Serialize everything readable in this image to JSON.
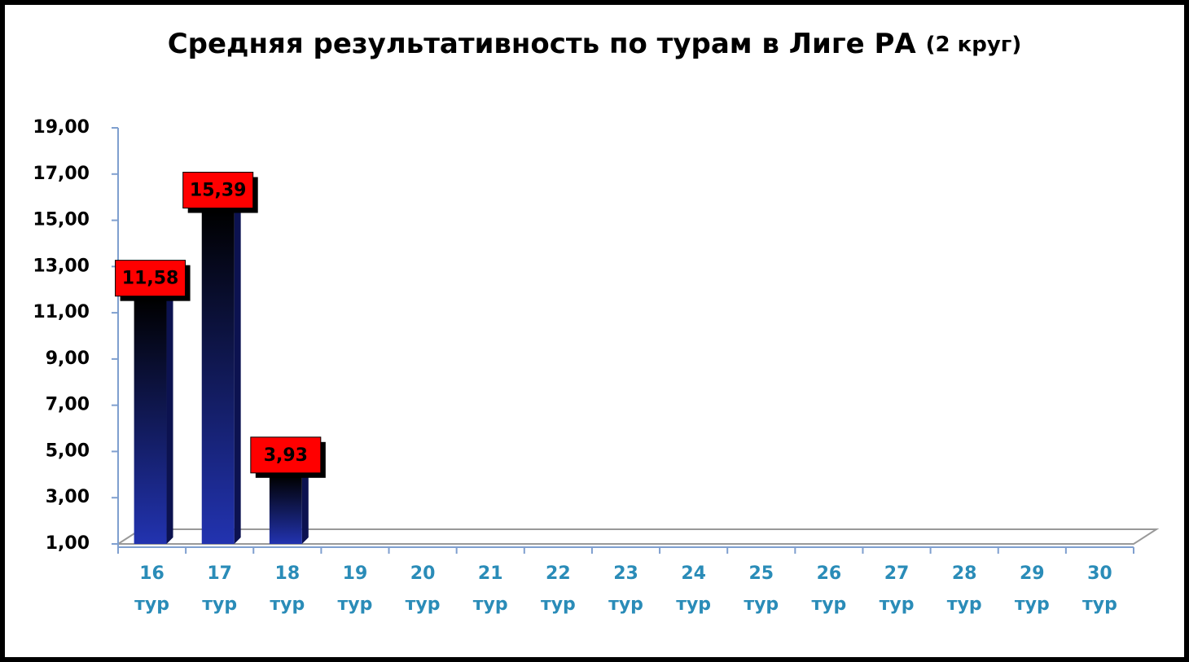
{
  "chart_data": {
    "type": "bar",
    "title": "Средняя результативность по турам в Лиге РА",
    "subtitle": "(2 круг)",
    "categories": [
      "16 тур",
      "17 тур",
      "18 тур",
      "19 тур",
      "20 тур",
      "21 тур",
      "22 тур",
      "23 тур",
      "24 тур",
      "25 тур",
      "26 тур",
      "27 тур",
      "28 тур",
      "29 тур",
      "30 тур"
    ],
    "values": [
      11.58,
      15.39,
      3.93,
      null,
      null,
      null,
      null,
      null,
      null,
      null,
      null,
      null,
      null,
      null,
      null
    ],
    "value_labels": [
      "11,58",
      "15,39",
      "3,93",
      null,
      null,
      null,
      null,
      null,
      null,
      null,
      null,
      null,
      null,
      null,
      null
    ],
    "color": "#2233b0",
    "label_color": "#ff0000",
    "ylim": [
      1,
      19
    ],
    "yticks": [
      {
        "value": 1,
        "label": "1,00"
      },
      {
        "value": 3,
        "label": "3,00"
      },
      {
        "value": 5,
        "label": "5,00"
      },
      {
        "value": 7,
        "label": "7,00"
      },
      {
        "value": 9,
        "label": "9,00"
      },
      {
        "value": 11,
        "label": "11,00"
      },
      {
        "value": 13,
        "label": "13,00"
      },
      {
        "value": 15,
        "label": "15,00"
      },
      {
        "value": 17,
        "label": "17,00"
      },
      {
        "value": 19,
        "label": "19,00"
      }
    ],
    "grid": false
  }
}
